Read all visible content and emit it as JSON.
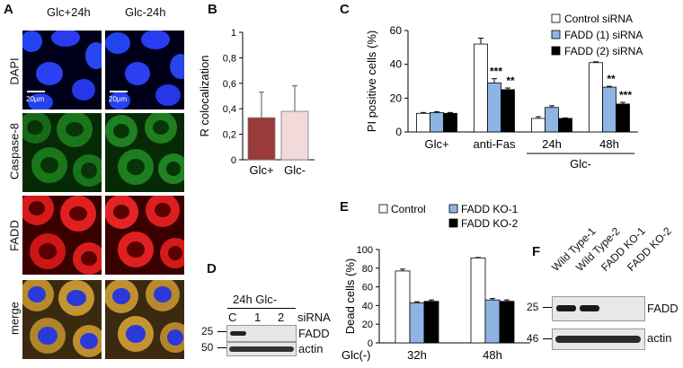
{
  "panelA": {
    "label": "A",
    "columns": [
      "Glc+24h",
      "Glc-24h"
    ],
    "rows": [
      "DAPI",
      "Caspase-8",
      "FADD",
      "merge"
    ],
    "scalebar": "20µm"
  },
  "panelB": {
    "label": "B",
    "chart_data": {
      "type": "bar",
      "categories": [
        "Glc+",
        "Glc-"
      ],
      "values": [
        0.33,
        0.38
      ],
      "errors": [
        0.2,
        0.2
      ],
      "colors": [
        "#9b3a3a",
        "#f2dada"
      ],
      "ylabel": "R colocalization",
      "ylim": [
        0,
        1
      ],
      "yticks": [
        "0",
        "0,2",
        "0,4",
        "0,6",
        "0,8",
        "1"
      ]
    }
  },
  "panelC": {
    "label": "C",
    "chart_data": {
      "type": "bar",
      "categories": [
        "Glc+",
        "anti-Fas",
        "24h",
        "48h"
      ],
      "group_label": "Glc-",
      "series": [
        {
          "name": "Control siRNA",
          "color": "#ffffff",
          "values": [
            11,
            52,
            8,
            41
          ],
          "errors": [
            0.5,
            3.5,
            1,
            0.5
          ]
        },
        {
          "name": "FADD (1) siRNA",
          "color": "#8eb4e3",
          "values": [
            11.5,
            29,
            14.5,
            26.5
          ],
          "errors": [
            0.5,
            2.5,
            1,
            0.5
          ]
        },
        {
          "name": "FADD (2) siRNA",
          "color": "#000000",
          "values": [
            11,
            25,
            8,
            16.5
          ],
          "errors": [
            0.5,
            1,
            0.3,
            1
          ]
        }
      ],
      "significance": [
        {
          "category": "anti-Fas",
          "series": 1,
          "text": "***"
        },
        {
          "category": "anti-Fas",
          "series": 2,
          "text": "**"
        },
        {
          "category": "48h",
          "series": 1,
          "text": "**"
        },
        {
          "category": "48h",
          "series": 2,
          "text": "***"
        }
      ],
      "ylabel": "PI positive cells (%)",
      "ylim": [
        0,
        60
      ],
      "yticks": [
        "0",
        "20",
        "40",
        "60"
      ]
    }
  },
  "panelD": {
    "label": "D",
    "title": "24h Glc-",
    "lanes": [
      "C",
      "1",
      "2"
    ],
    "lane_label": "siRNA",
    "markers": [
      "25",
      "50"
    ],
    "bands": [
      "FADD",
      "actin"
    ]
  },
  "panelE": {
    "label": "E",
    "chart_data": {
      "type": "bar",
      "categories": [
        "32h",
        "48h"
      ],
      "x_prefix": "Glc(-)",
      "series": [
        {
          "name": "Control",
          "color": "#ffffff",
          "values": [
            77,
            91
          ],
          "errors": [
            2,
            0.5
          ]
        },
        {
          "name": "FADD KO-1",
          "color": "#8eb4e3",
          "values": [
            43,
            46
          ],
          "errors": [
            1,
            1.5
          ]
        },
        {
          "name": "FADD KO-2",
          "color": "#000000",
          "values": [
            44.5,
            44.5
          ],
          "errors": [
            1.5,
            1.5
          ]
        }
      ],
      "ylabel": "Dead cells (%)",
      "ylim": [
        0,
        100
      ],
      "yticks": [
        "0",
        "20",
        "40",
        "60",
        "80",
        "100"
      ]
    }
  },
  "panelF": {
    "label": "F",
    "lanes": [
      "Wild Type-1",
      "Wild Type-2",
      "FADD KO-1",
      "FADD KO-2"
    ],
    "markers": [
      "25",
      "46"
    ],
    "bands": [
      "FADD",
      "actin"
    ]
  }
}
